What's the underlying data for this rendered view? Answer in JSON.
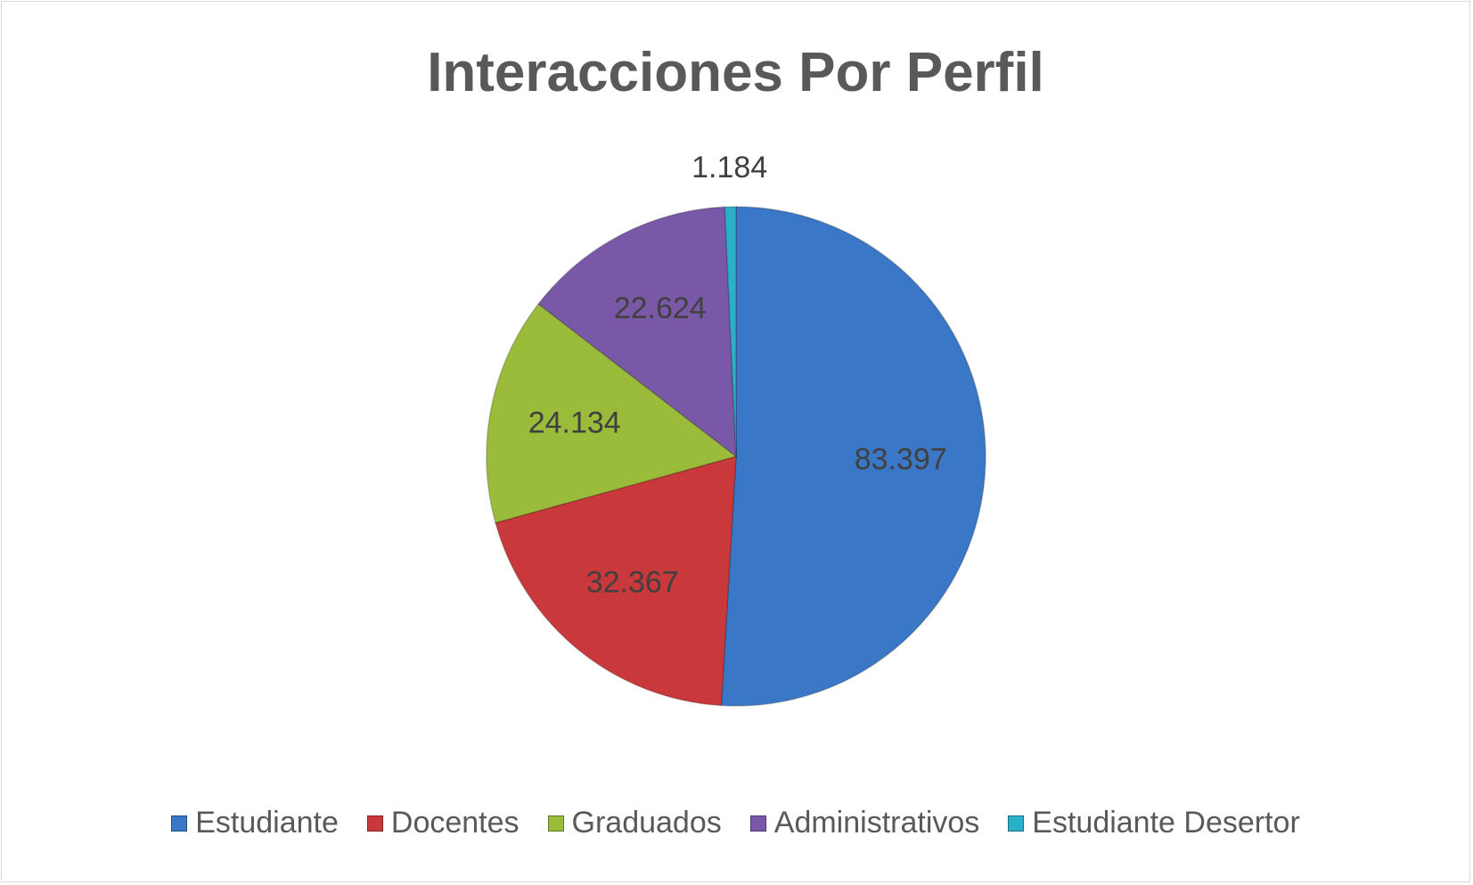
{
  "chart_data": {
    "type": "pie",
    "title": "Interacciones Por Perfil",
    "legend_position": "bottom",
    "categories": [
      "Estudiante",
      "Docentes",
      "Graduados",
      "Administrativos",
      "Estudiante Desertor"
    ],
    "values": [
      83397,
      32367,
      24134,
      22624,
      1184
    ],
    "data_labels": [
      "83.397",
      "32.367",
      "24.134",
      "22.624",
      "1.184"
    ],
    "colors": [
      "#3a78c7",
      "#c9383a",
      "#9bbb3a",
      "#7a58a8",
      "#2ab0c8"
    ]
  }
}
